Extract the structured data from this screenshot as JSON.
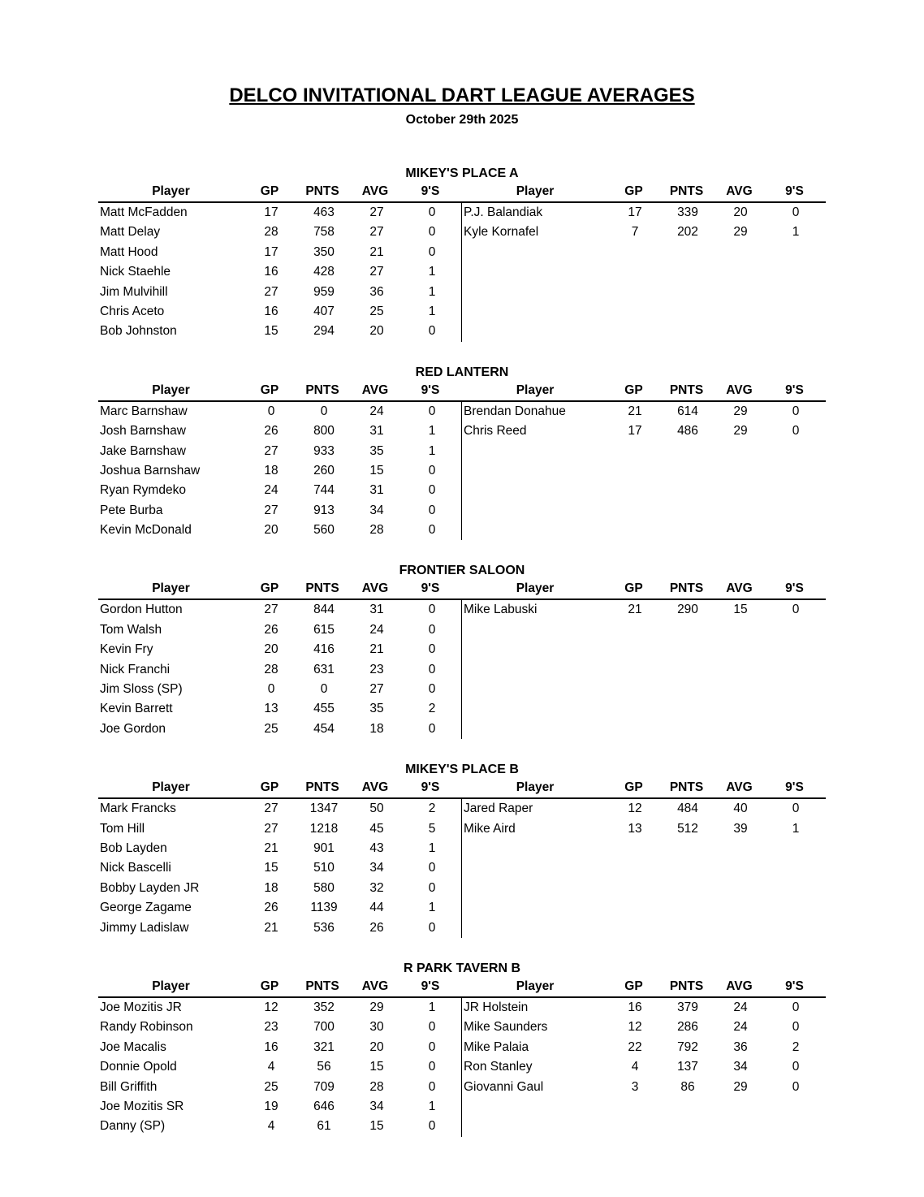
{
  "document": {
    "title": "DELCO INVITATIONAL DART LEAGUE AVERAGES",
    "date": "October 29th 2025"
  },
  "colors": {
    "text": "#000000",
    "background": "#ffffff",
    "rule_lines": "#000000"
  },
  "columns": [
    "Player",
    "GP",
    "PNTS",
    "AVG",
    "9'S"
  ],
  "sections": [
    {
      "title": "MIKEY'S PLACE A",
      "left": [
        [
          "Matt McFadden",
          "17",
          "463",
          "27",
          "0"
        ],
        [
          "Matt Delay",
          "28",
          "758",
          "27",
          "0"
        ],
        [
          "Matt Hood",
          "17",
          "350",
          "21",
          "0"
        ],
        [
          "Nick Staehle",
          "16",
          "428",
          "27",
          "1"
        ],
        [
          "Jim Mulvihill",
          "27",
          "959",
          "36",
          "1"
        ],
        [
          "Chris Aceto",
          "16",
          "407",
          "25",
          "1"
        ],
        [
          "Bob Johnston",
          "15",
          "294",
          "20",
          "0"
        ]
      ],
      "right": [
        [
          "P.J. Balandiak",
          "17",
          "339",
          "20",
          "0"
        ],
        [
          "Kyle Kornafel",
          "7",
          "202",
          "29",
          "1"
        ]
      ]
    },
    {
      "title": "RED LANTERN",
      "left": [
        [
          "Marc Barnshaw",
          "0",
          "0",
          "24",
          "0"
        ],
        [
          "Josh Barnshaw",
          "26",
          "800",
          "31",
          "1"
        ],
        [
          "Jake Barnshaw",
          "27",
          "933",
          "35",
          "1"
        ],
        [
          "Joshua Barnshaw",
          "18",
          "260",
          "15",
          "0"
        ],
        [
          "Ryan Rymdeko",
          "24",
          "744",
          "31",
          "0"
        ],
        [
          "Pete Burba",
          "27",
          "913",
          "34",
          "0"
        ],
        [
          "Kevin McDonald",
          "20",
          "560",
          "28",
          "0"
        ]
      ],
      "right": [
        [
          "Brendan Donahue",
          "21",
          "614",
          "29",
          "0"
        ],
        [
          "Chris Reed",
          "17",
          "486",
          "29",
          "0"
        ]
      ]
    },
    {
      "title": "FRONTIER SALOON",
      "left": [
        [
          "Gordon Hutton",
          "27",
          "844",
          "31",
          "0"
        ],
        [
          "Tom Walsh",
          "26",
          "615",
          "24",
          "0"
        ],
        [
          "Kevin Fry",
          "20",
          "416",
          "21",
          "0"
        ],
        [
          "Nick Franchi",
          "28",
          "631",
          "23",
          "0"
        ],
        [
          "Jim Sloss (SP)",
          "0",
          "0",
          "27",
          "0"
        ],
        [
          "Kevin Barrett",
          "13",
          "455",
          "35",
          "2"
        ],
        [
          "Joe Gordon",
          "25",
          "454",
          "18",
          "0"
        ]
      ],
      "right": [
        [
          "Mike Labuski",
          "21",
          "290",
          "15",
          "0"
        ]
      ]
    },
    {
      "title": "MIKEY'S PLACE B",
      "left": [
        [
          "Mark Francks",
          "27",
          "1347",
          "50",
          "2"
        ],
        [
          "Tom Hill",
          "27",
          "1218",
          "45",
          "5"
        ],
        [
          "Bob Layden",
          "21",
          "901",
          "43",
          "1"
        ],
        [
          "Nick Bascelli",
          "15",
          "510",
          "34",
          "0"
        ],
        [
          "Bobby Layden JR",
          "18",
          "580",
          "32",
          "0"
        ],
        [
          "George Zagame",
          "26",
          "1139",
          "44",
          "1"
        ],
        [
          "Jimmy Ladislaw",
          "21",
          "536",
          "26",
          "0"
        ]
      ],
      "right": [
        [
          "Jared Raper",
          "12",
          "484",
          "40",
          "0"
        ],
        [
          "Mike Aird",
          "13",
          "512",
          "39",
          "1"
        ]
      ]
    },
    {
      "title": "R PARK TAVERN B",
      "left": [
        [
          "Joe Mozitis JR",
          "12",
          "352",
          "29",
          "1"
        ],
        [
          "Randy Robinson",
          "23",
          "700",
          "30",
          "0"
        ],
        [
          "Joe Macalis",
          "16",
          "321",
          "20",
          "0"
        ],
        [
          "Donnie Opold",
          "4",
          "56",
          "15",
          "0"
        ],
        [
          "Bill Griffith",
          "25",
          "709",
          "28",
          "0"
        ],
        [
          "Joe Mozitis SR",
          "19",
          "646",
          "34",
          "1"
        ],
        [
          "Danny (SP)",
          "4",
          "61",
          "15",
          "0"
        ]
      ],
      "right": [
        [
          "JR Holstein",
          "16",
          "379",
          "24",
          "0"
        ],
        [
          "Mike Saunders",
          "12",
          "286",
          "24",
          "0"
        ],
        [
          "Mike Palaia",
          "22",
          "792",
          "36",
          "2"
        ],
        [
          "Ron Stanley",
          "4",
          "137",
          "34",
          "0"
        ],
        [
          "Giovanni Gaul",
          "3",
          "86",
          "29",
          "0"
        ]
      ]
    }
  ]
}
